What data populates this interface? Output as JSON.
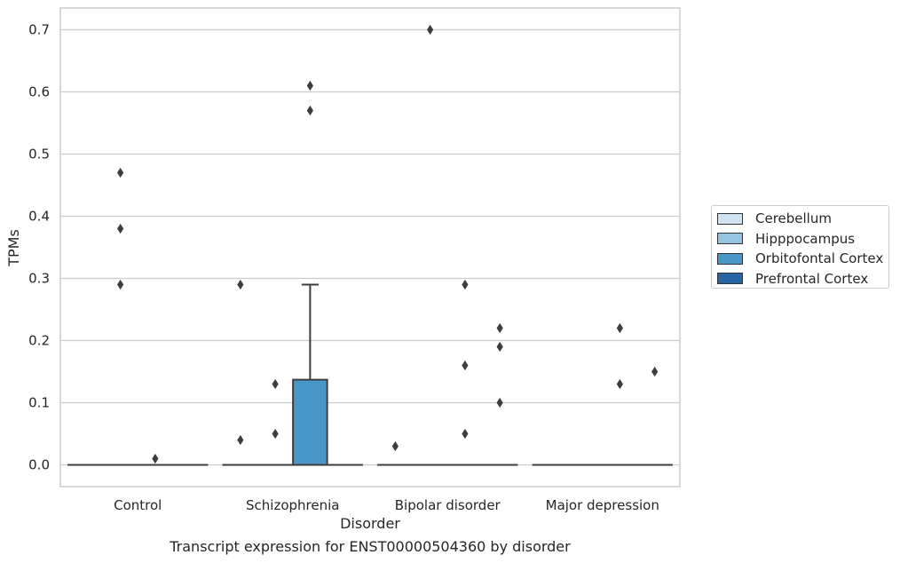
{
  "chart_data": {
    "type": "box",
    "xlabel": "Disorder",
    "ylabel": "TPMs",
    "caption": "Transcript expression for ENST00000504360 by disorder",
    "ylim": [
      -0.035,
      0.735
    ],
    "yticks": [
      "0.0",
      "0.1",
      "0.2",
      "0.3",
      "0.4",
      "0.5",
      "0.6",
      "0.7"
    ],
    "grid": "horizontal",
    "legend_position": "right",
    "categories": [
      "Control",
      "Schizophrenia",
      "Bipolar disorder",
      "Major depression"
    ],
    "series": [
      {
        "name": "Cerebellum",
        "color": "#d0e1f2"
      },
      {
        "name": "Hipppocampus",
        "color": "#94c4df"
      },
      {
        "name": "Orbitofontal Cortex",
        "color": "#4a98c9"
      },
      {
        "name": "Prefrontal Cortex",
        "color": "#2565a4"
      }
    ],
    "boxes": [
      {
        "category": 0,
        "series": 0,
        "q1": 0,
        "median": 0,
        "q3": 0,
        "whisker_low": 0,
        "whisker_high": 0,
        "outliers": []
      },
      {
        "category": 0,
        "series": 1,
        "q1": 0,
        "median": 0,
        "q3": 0,
        "whisker_low": 0,
        "whisker_high": 0,
        "outliers": [
          0.47,
          0.38,
          0.29
        ]
      },
      {
        "category": 0,
        "series": 2,
        "q1": 0,
        "median": 0,
        "q3": 0,
        "whisker_low": 0,
        "whisker_high": 0,
        "outliers": [
          0.01
        ]
      },
      {
        "category": 0,
        "series": 3,
        "q1": 0,
        "median": 0,
        "q3": 0,
        "whisker_low": 0,
        "whisker_high": 0,
        "outliers": []
      },
      {
        "category": 1,
        "series": 0,
        "q1": 0,
        "median": 0,
        "q3": 0,
        "whisker_low": 0,
        "whisker_high": 0,
        "outliers": [
          0.29,
          0.04
        ]
      },
      {
        "category": 1,
        "series": 1,
        "q1": 0,
        "median": 0,
        "q3": 0,
        "whisker_low": 0,
        "whisker_high": 0,
        "outliers": [
          0.13,
          0.05
        ]
      },
      {
        "category": 1,
        "series": 2,
        "q1": 0,
        "median": 0,
        "q3": 0.137,
        "whisker_low": 0,
        "whisker_high": 0.29,
        "outliers": [
          0.61,
          0.57
        ]
      },
      {
        "category": 1,
        "series": 3,
        "q1": 0,
        "median": 0,
        "q3": 0,
        "whisker_low": 0,
        "whisker_high": 0,
        "outliers": []
      },
      {
        "category": 2,
        "series": 0,
        "q1": 0,
        "median": 0,
        "q3": 0,
        "whisker_low": 0,
        "whisker_high": 0,
        "outliers": [
          0.03
        ]
      },
      {
        "category": 2,
        "series": 1,
        "q1": 0,
        "median": 0,
        "q3": 0,
        "whisker_low": 0,
        "whisker_high": 0,
        "outliers": [
          0.7
        ]
      },
      {
        "category": 2,
        "series": 2,
        "q1": 0,
        "median": 0,
        "q3": 0,
        "whisker_low": 0,
        "whisker_high": 0,
        "outliers": [
          0.29,
          0.16,
          0.05
        ]
      },
      {
        "category": 2,
        "series": 3,
        "q1": 0,
        "median": 0,
        "q3": 0,
        "whisker_low": 0,
        "whisker_high": 0,
        "outliers": [
          0.22,
          0.19,
          0.1
        ]
      },
      {
        "category": 3,
        "series": 0,
        "q1": 0,
        "median": 0,
        "q3": 0,
        "whisker_low": 0,
        "whisker_high": 0,
        "outliers": []
      },
      {
        "category": 3,
        "series": 1,
        "q1": 0,
        "median": 0,
        "q3": 0,
        "whisker_low": 0,
        "whisker_high": 0,
        "outliers": []
      },
      {
        "category": 3,
        "series": 2,
        "q1": 0,
        "median": 0,
        "q3": 0,
        "whisker_low": 0,
        "whisker_high": 0,
        "outliers": [
          0.22,
          0.13
        ]
      },
      {
        "category": 3,
        "series": 3,
        "q1": 0,
        "median": 0,
        "q3": 0,
        "whisker_low": 0,
        "whisker_high": 0,
        "outliers": [
          0.15
        ]
      }
    ]
  }
}
